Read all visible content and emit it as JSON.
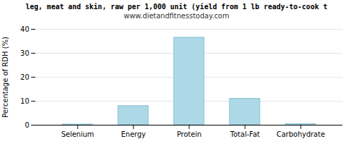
{
  "chart_data": {
    "type": "bar",
    "title": "leg, meat and skin, raw per 1,000 unit (yield from 1 lb ready-to-cook t",
    "subtitle": "www.dietandfitnesstoday.com",
    "categories": [
      "Selenium",
      "Energy",
      "Protein",
      "Total-Fat",
      "Carbohydrate"
    ],
    "values": [
      0.3,
      8.0,
      36.5,
      11.0,
      0.4
    ],
    "color": "#add8e6",
    "ylabel": "Percentage of RDH (%)",
    "ylim": [
      0,
      40
    ],
    "yticks": [
      0,
      10,
      20,
      30,
      40
    ],
    "grid": true
  }
}
